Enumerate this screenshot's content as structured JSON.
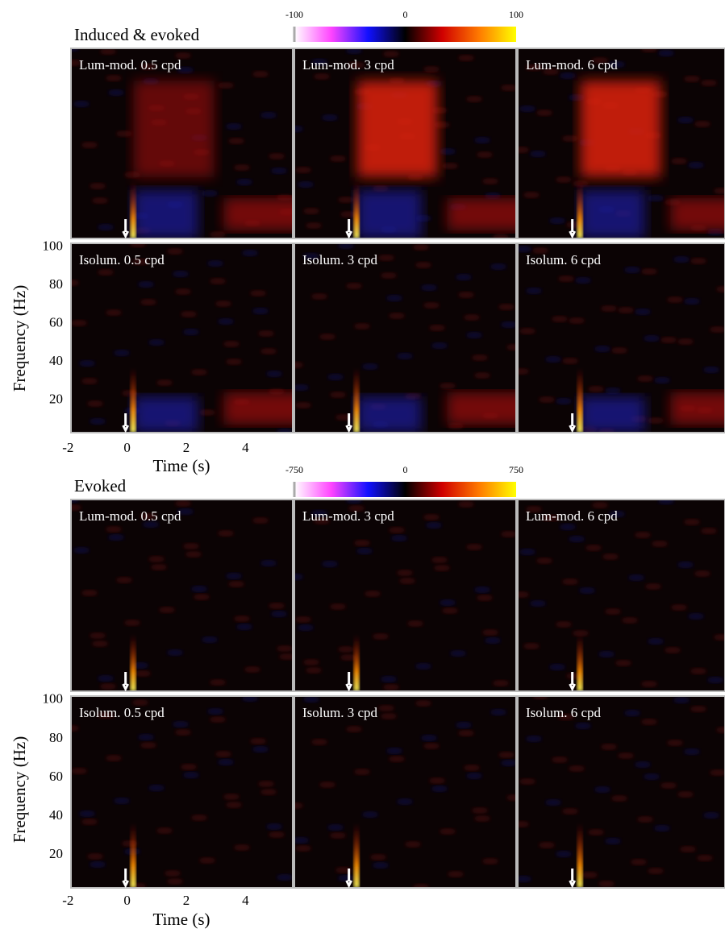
{
  "chart_data": [
    {
      "type": "heatmap",
      "title": "Induced & evoked",
      "panels": [
        "Lum-mod. 0.5 cpd",
        "Lum-mod. 3 cpd",
        "Lum-mod. 6 cpd",
        "Isolum. 0.5 cpd",
        "Isolum. 3 cpd",
        "Isolum. 6 cpd"
      ],
      "xlabel": "Time (s)",
      "ylabel": "Frequency (Hz)",
      "xlim": [
        -1.9,
        5.6
      ],
      "xticks": [
        -2,
        0,
        2,
        4
      ],
      "ylim": [
        3,
        102
      ],
      "yticks": [
        20,
        40,
        60,
        80,
        100
      ],
      "stimulus_onset": 0,
      "colorbar": {
        "lim": [
          -100,
          100
        ],
        "ticks": [
          -100,
          0,
          100
        ],
        "colors": [
          "#ffffff",
          "#ff44ff",
          "#1010ff",
          "#000000",
          "#d00000",
          "#ff7a00",
          "#ffff00"
        ]
      }
    },
    {
      "type": "heatmap",
      "title": "Evoked",
      "panels": [
        "Lum-mod. 0.5 cpd",
        "Lum-mod. 3 cpd",
        "Lum-mod. 6 cpd",
        "Isolum. 0.5 cpd",
        "Isolum. 3 cpd",
        "Isolum. 6 cpd"
      ],
      "xlabel": "Time (s)",
      "ylabel": "Frequency (Hz)",
      "xlim": [
        -1.9,
        5.6
      ],
      "xticks": [
        -2,
        0,
        2,
        4
      ],
      "ylim": [
        3,
        102
      ],
      "yticks": [
        20,
        40,
        60,
        80,
        100
      ],
      "stimulus_onset": 0,
      "colorbar": {
        "lim": [
          -750,
          750
        ],
        "ticks": [
          -750,
          0,
          750
        ],
        "colors": [
          "#ffffff",
          "#ff44ff",
          "#1010ff",
          "#000000",
          "#d00000",
          "#ff7a00",
          "#ffff00"
        ]
      }
    }
  ]
}
